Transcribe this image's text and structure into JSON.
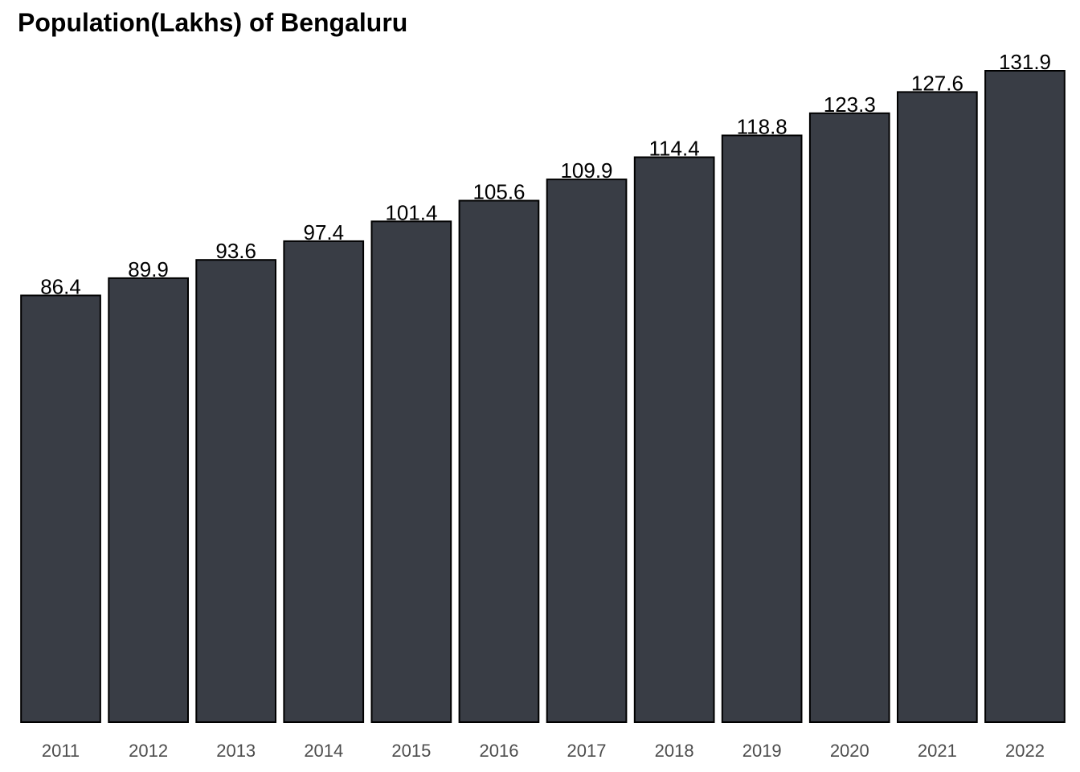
{
  "chart_data": {
    "type": "bar",
    "title": "Population(Lakhs) of Bengaluru",
    "xlabel": "",
    "ylabel": "",
    "categories": [
      "2011",
      "2012",
      "2013",
      "2014",
      "2015",
      "2016",
      "2017",
      "2018",
      "2019",
      "2020",
      "2021",
      "2022"
    ],
    "values": [
      86.4,
      89.9,
      93.6,
      97.4,
      101.4,
      105.6,
      109.9,
      114.4,
      118.8,
      123.3,
      127.6,
      131.9
    ],
    "value_labels": [
      "86.4",
      "89.9",
      "93.6",
      "97.4",
      "101.4",
      "105.6",
      "109.9",
      "114.4",
      "118.8",
      "123.3",
      "127.6",
      "131.9"
    ],
    "ylim": [
      0,
      131.9
    ],
    "grid": false,
    "legend": "none",
    "colors": {
      "bar_fill": "#393d45",
      "bar_stroke": "#000000",
      "label": "#000000",
      "tick": "#4d4d4d"
    }
  }
}
